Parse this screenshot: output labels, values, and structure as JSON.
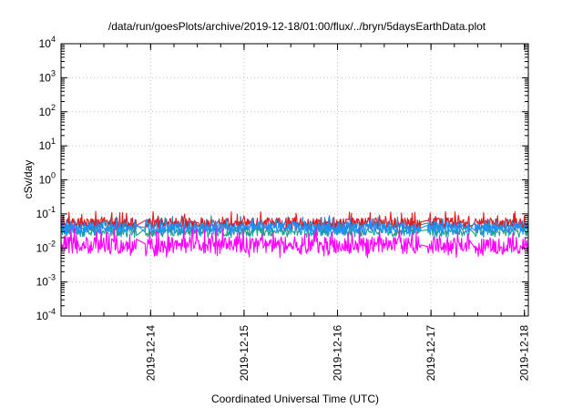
{
  "chart_data": {
    "type": "line",
    "title": "/data/run/goesPlots/archive/2019-12-18/01:00/flux/../bryn/5daysEarthData.plot",
    "xlabel": "Coordinated Universal Time (UTC)",
    "ylabel": "cSv/day",
    "yscale": "log",
    "ylim": [
      0.0001,
      10000
    ],
    "yticks": [
      {
        "base": "10",
        "exp": "-4"
      },
      {
        "base": "10",
        "exp": "-3"
      },
      {
        "base": "10",
        "exp": "-2"
      },
      {
        "base": "10",
        "exp": "-1"
      },
      {
        "base": "10",
        "exp": "0"
      },
      {
        "base": "10",
        "exp": "1"
      },
      {
        "base": "10",
        "exp": "2"
      },
      {
        "base": "10",
        "exp": "3"
      },
      {
        "base": "10",
        "exp": "4"
      }
    ],
    "xlim": [
      "2019-12-13 01:00",
      "2019-12-18 01:00"
    ],
    "xticks": [
      "2019-12-14",
      "2019-12-15",
      "2019-12-16",
      "2019-12-17",
      "2019-12-18"
    ],
    "grid": true,
    "legend": "none",
    "series": [
      {
        "color": "#e41a1c",
        "typical": 0.055,
        "low": 0.035,
        "high": 0.12
      },
      {
        "color": "#2c7fb8",
        "typical": 0.045,
        "low": 0.03,
        "high": 0.09
      },
      {
        "color": "#1f9e89",
        "typical": 0.03,
        "low": 0.02,
        "high": 0.06
      },
      {
        "color": "#1e90ff",
        "typical": 0.04,
        "low": 0.02,
        "high": 0.08
      },
      {
        "color": "#ff00ff",
        "typical": 0.012,
        "low": 0.005,
        "high": 0.04
      }
    ],
    "gaps": [
      {
        "start": "2019-12-13 20:30",
        "end": "2019-12-13 22:30"
      },
      {
        "start": "2019-12-16 21:30",
        "end": "2019-12-16 23:00"
      },
      {
        "start": "2019-12-17 10:00",
        "end": "2019-12-17 11:00"
      }
    ]
  }
}
